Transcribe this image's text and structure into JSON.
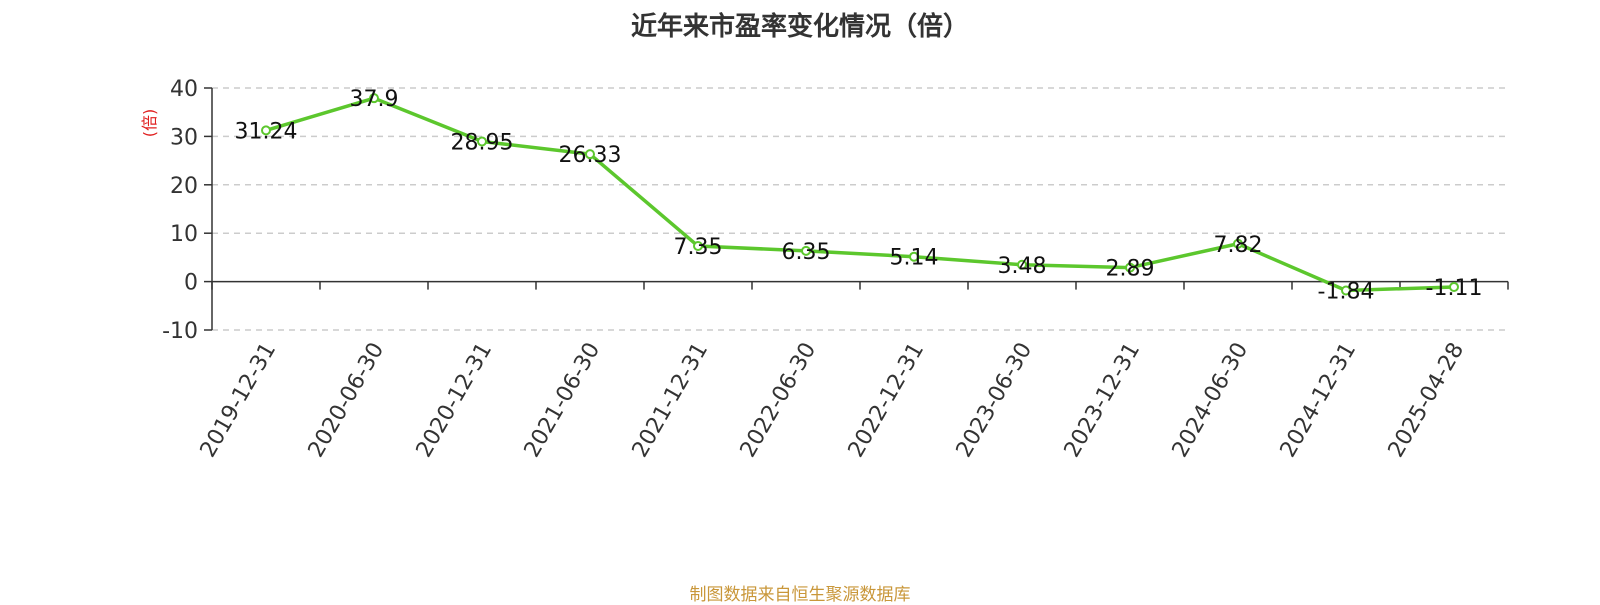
{
  "chart_data": {
    "type": "line",
    "title": "近年来市盈率变化情况（倍）",
    "ylabel": "(倍)",
    "xlabel": "",
    "categories": [
      "2019-12-31",
      "2020-06-30",
      "2020-12-31",
      "2021-06-30",
      "2021-12-31",
      "2022-06-30",
      "2022-12-31",
      "2023-06-30",
      "2023-12-31",
      "2024-06-30",
      "2024-12-31",
      "2025-04-28"
    ],
    "series": [
      {
        "values": [
          31.24,
          37.9,
          28.95,
          26.33,
          7.35,
          6.35,
          5.14,
          3.48,
          2.89,
          7.82,
          -1.84,
          -1.11
        ],
        "labels": [
          "31.24",
          "37.9",
          "28.95",
          "26.33",
          "7.35",
          "6.35",
          "5.14",
          "3.48",
          "2.89",
          "7.82",
          "-1.84",
          "-1.11"
        ],
        "color": "#5cc72d"
      }
    ],
    "ylim": [
      -10,
      40
    ],
    "yticks": [
      -10,
      0,
      10,
      20,
      30,
      40
    ],
    "grid": true,
    "legend": "none"
  },
  "source": "制图数据来自恒生聚源数据库",
  "colors": {
    "line": "#5cc72d",
    "ylabel": "#e02020",
    "source": "#c9973a",
    "grid": "#cccccc",
    "axis": "#333333"
  }
}
